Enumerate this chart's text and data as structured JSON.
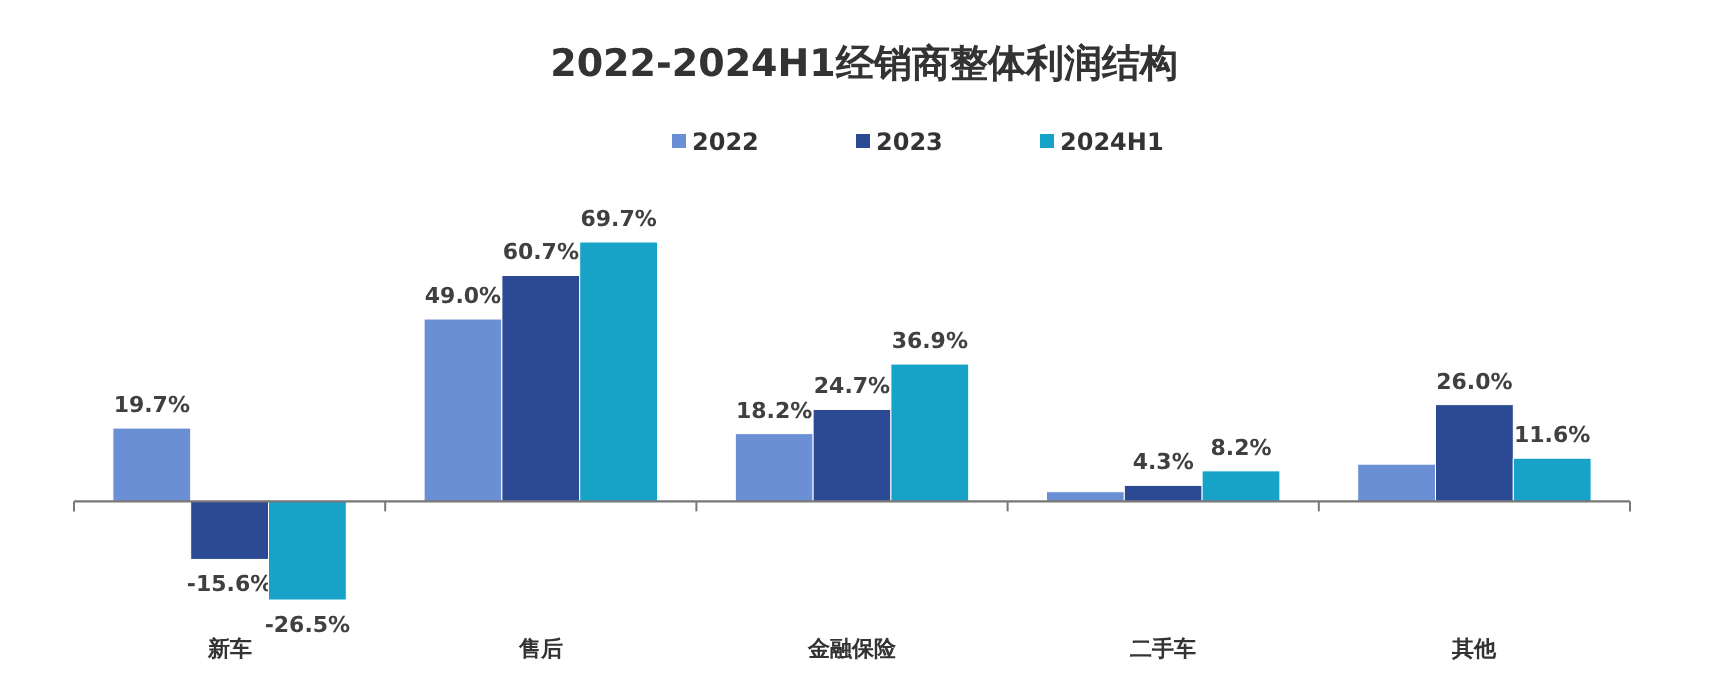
{
  "chart_data": {
    "type": "bar",
    "title": "2022-2024H1经销商整体利润结构",
    "categories": [
      "新车",
      "售后",
      "金融保险",
      "二手车",
      "其他"
    ],
    "series": [
      {
        "name": "2022",
        "color": "#6a8fd4",
        "values": [
          19.7,
          49.0,
          18.2,
          2.6,
          10.0
        ],
        "value_labels": [
          "19.7%",
          "49.0%",
          "18.2%",
          null,
          null
        ]
      },
      {
        "name": "2023",
        "color": "#2b4a93",
        "values": [
          -15.6,
          60.7,
          24.7,
          4.3,
          26.0
        ],
        "value_labels": [
          "-15.6%",
          "60.7%",
          "24.7%",
          "4.3%",
          "26.0%"
        ]
      },
      {
        "name": "2024H1",
        "color": "#17a2c8",
        "values": [
          -26.5,
          69.7,
          36.9,
          8.2,
          11.6
        ],
        "value_labels": [
          "-26.5%",
          "69.7%",
          "36.9%",
          "8.2%",
          "11.6%"
        ]
      }
    ],
    "legend": "top",
    "grid": false
  }
}
